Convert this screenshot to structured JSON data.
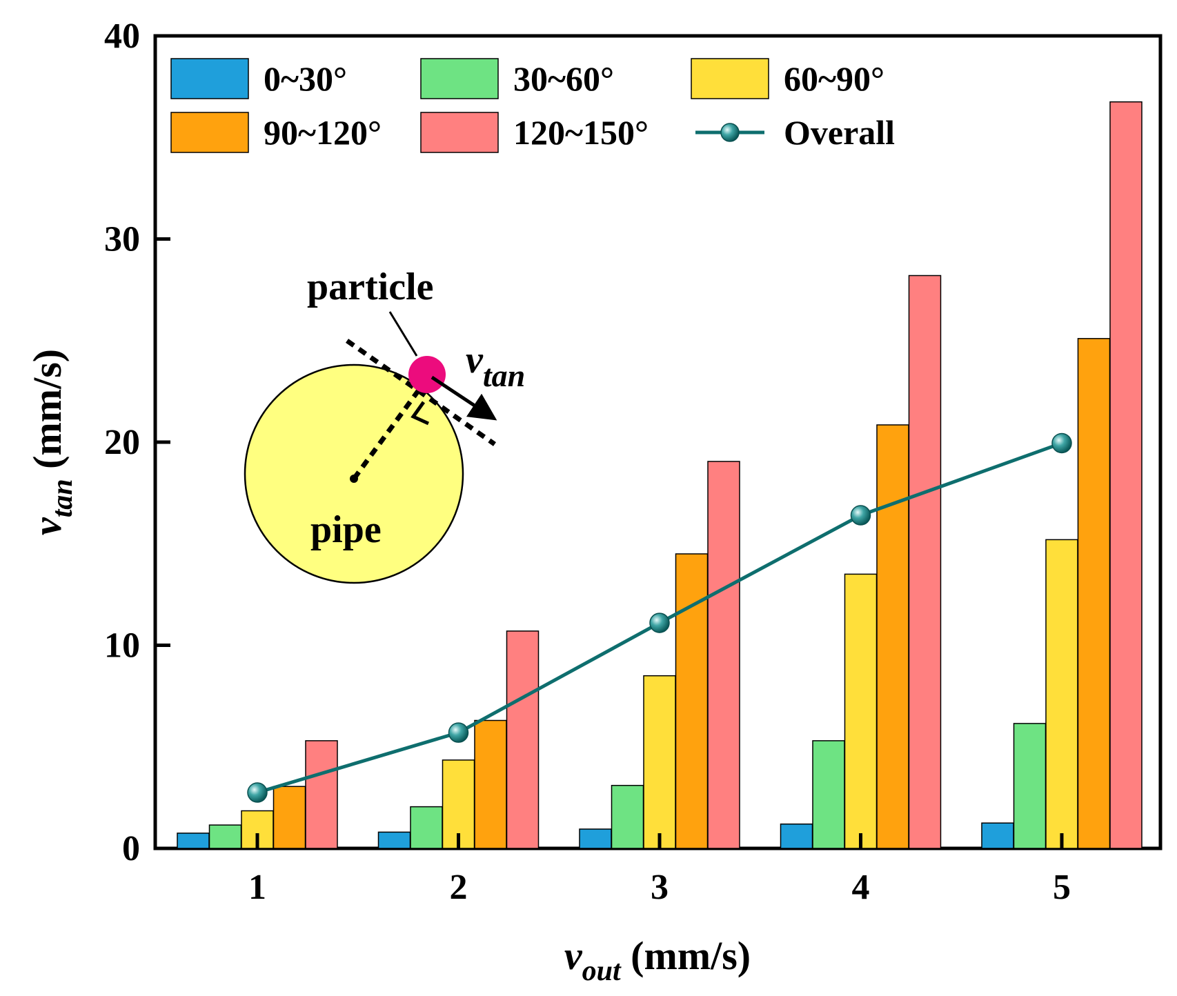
{
  "chart_data": {
    "type": "bar",
    "title": "",
    "xlabel": {
      "main": "v",
      "sub": "out",
      "unit": " (mm/s)"
    },
    "ylabel": {
      "main": "v",
      "sub": "tan",
      "unit": " (mm/s)"
    },
    "ylim": [
      0,
      40
    ],
    "yticks": [
      "0",
      "10",
      "20",
      "30",
      "40"
    ],
    "yticks_values": [
      0,
      10,
      20,
      30,
      40
    ],
    "categories": [
      "1",
      "2",
      "3",
      "4",
      "5"
    ],
    "series": [
      {
        "name": "0~30°",
        "color": "#1f9fdb",
        "values": [
          0.75,
          0.8,
          0.95,
          1.2,
          1.25
        ]
      },
      {
        "name": "30~60°",
        "color": "#6ee383",
        "values": [
          1.15,
          2.05,
          3.1,
          5.3,
          6.15
        ]
      },
      {
        "name": "60~90°",
        "color": "#ffdf3a",
        "values": [
          1.85,
          4.35,
          8.5,
          13.5,
          15.2
        ]
      },
      {
        "name": "90~120°",
        "color": "#ffa20e",
        "values": [
          3.05,
          6.3,
          14.5,
          20.85,
          25.1
        ]
      },
      {
        "name": "120~150°",
        "color": "#ff8080",
        "values": [
          5.3,
          10.7,
          19.05,
          28.2,
          36.75
        ]
      }
    ],
    "line_series": {
      "name": "Overall",
      "color": "#0e6e6e",
      "values": [
        2.75,
        5.7,
        11.1,
        16.4,
        19.95
      ]
    },
    "legend_position": "top-left",
    "inset": {
      "particle_label": "particle",
      "pipe_label": "pipe",
      "vector_label": {
        "main": "v",
        "sub": "tan"
      }
    }
  }
}
